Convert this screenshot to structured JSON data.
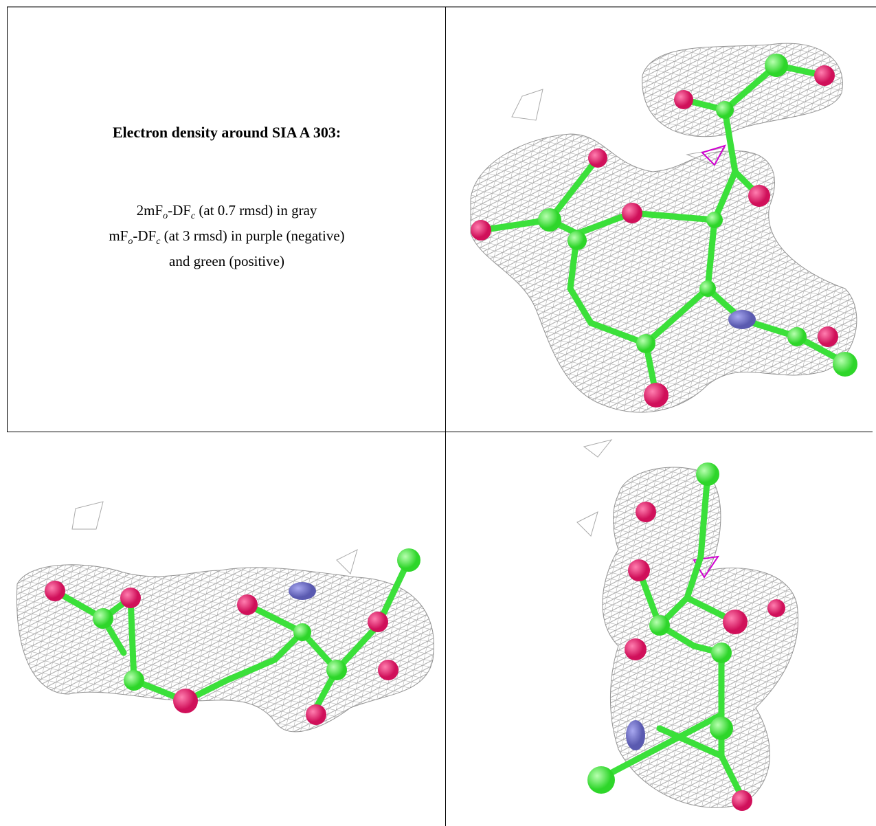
{
  "title": "Electron density around SIA A 303:",
  "legend": {
    "lines": [
      {
        "parts": [
          "2mF",
          "o",
          "-DF",
          "c",
          " (at 0.7 rmsd) in gray"
        ]
      },
      {
        "parts": [
          "mF",
          "o",
          "-DF",
          "c",
          " (at 3 rmsd) in purple (negative)"
        ]
      },
      {
        "parts": [
          "and green (positive)"
        ]
      }
    ]
  }
}
